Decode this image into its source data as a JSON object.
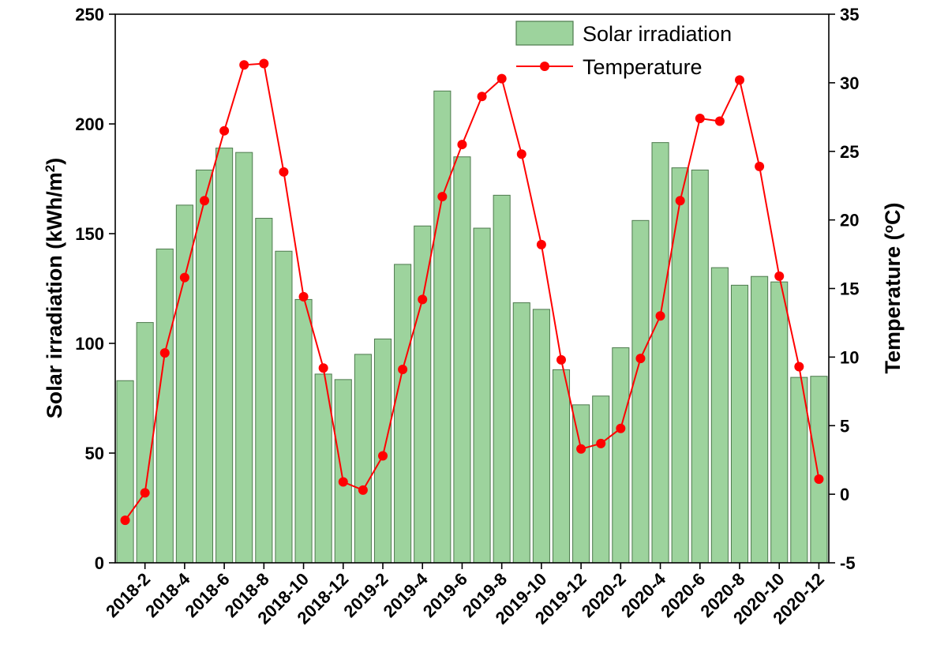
{
  "chart_data": {
    "type": "bar",
    "categories": [
      "2018-1",
      "2018-2",
      "2018-3",
      "2018-4",
      "2018-5",
      "2018-6",
      "2018-7",
      "2018-8",
      "2018-9",
      "2018-10",
      "2018-11",
      "2018-12",
      "2019-1",
      "2019-2",
      "2019-3",
      "2019-4",
      "2019-5",
      "2019-6",
      "2019-7",
      "2019-8",
      "2019-9",
      "2019-10",
      "2019-11",
      "2019-12",
      "2020-1",
      "2020-2",
      "2020-3",
      "2020-4",
      "2020-5",
      "2020-6",
      "2020-7",
      "2020-8",
      "2020-9",
      "2020-10",
      "2020-11",
      "2020-12"
    ],
    "x_tick_labels": [
      "2018-2",
      "2018-4",
      "2018-6",
      "2018-8",
      "2018-10",
      "2018-12",
      "2019-2",
      "2019-4",
      "2019-6",
      "2019-8",
      "2019-10",
      "2019-12",
      "2020-2",
      "2020-4",
      "2020-6",
      "2020-8",
      "2020-10",
      "2020-12"
    ],
    "series": [
      {
        "name": "Solar irradiation",
        "type": "bar",
        "axis": "left",
        "color": "#9dd39d",
        "values": [
          83,
          109.5,
          143,
          163,
          179,
          189,
          187,
          157,
          142,
          120,
          86,
          83.5,
          95,
          102,
          136,
          153.5,
          215,
          185,
          152.5,
          167.5,
          118.5,
          115.5,
          88,
          72,
          76,
          98,
          156,
          191.5,
          180,
          179,
          134.5,
          126.5,
          130.5,
          128,
          84.5,
          85
        ]
      },
      {
        "name": "Temperature",
        "type": "line",
        "axis": "right",
        "color": "#ff0000",
        "values": [
          -1.9,
          0.1,
          10.3,
          15.8,
          21.4,
          26.5,
          31.3,
          31.4,
          23.5,
          14.4,
          9.2,
          0.9,
          0.3,
          2.8,
          9.1,
          14.2,
          21.7,
          25.5,
          29.0,
          30.3,
          24.8,
          18.2,
          9.8,
          3.3,
          3.7,
          4.8,
          9.9,
          13.0,
          21.4,
          27.4,
          27.2,
          30.2,
          23.9,
          15.9,
          9.3,
          1.1
        ]
      }
    ],
    "ylabel": "Solar irradiation (kWh/m",
    "ylabel_sup": "2",
    "ylabel_end": ")",
    "ylim": [
      0,
      250
    ],
    "yticks": [
      0,
      50,
      100,
      150,
      200,
      250
    ],
    "y2label": "Temperature (",
    "y2label_sup": "o",
    "y2label_end": "C)",
    "y2lim": [
      -5,
      35
    ],
    "y2ticks": [
      -5,
      0,
      5,
      10,
      15,
      20,
      25,
      30,
      35
    ],
    "legend": [
      {
        "label": "Solar irradiation",
        "kind": "bar"
      },
      {
        "label": "Temperature",
        "kind": "line"
      }
    ],
    "legend_position": "top-right",
    "grid": false
  }
}
